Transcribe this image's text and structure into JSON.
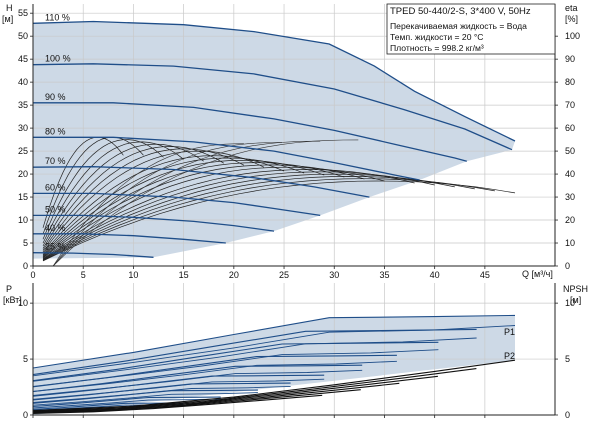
{
  "chart_data": [
    {
      "type": "line",
      "panel": "head",
      "info_box": [
        "TPED 50-440/2-S, 3*400 V, 50Hz",
        "Перекачиваемая жидкость = Вода",
        "Темп. жидкости = 20 °C",
        "Плотность = 998.2 кг/м³"
      ],
      "ylabel": "H",
      "yunit": "[м]",
      "y2label": "eta",
      "y2unit": "[%]",
      "xlabel": "Q [м³/ч]",
      "xlim": [
        0,
        50
      ],
      "ylim": [
        0,
        57
      ],
      "y2lim": [
        0,
        114
      ],
      "xticks": [
        0,
        5,
        10,
        15,
        20,
        25,
        30,
        35,
        40,
        45
      ],
      "yticks": [
        0,
        5,
        10,
        15,
        20,
        25,
        30,
        35,
        40,
        45,
        50,
        55
      ],
      "y2ticks": [
        0,
        10,
        20,
        30,
        40,
        50,
        60,
        70,
        80,
        90,
        100
      ],
      "grid": true,
      "operating_area_color": "#cdd9e6",
      "curve_color": "#1f4e89",
      "speed_curves": [
        {
          "label": "110 %",
          "points": [
            [
              0,
              52.8
            ],
            [
              6,
              53.2
            ],
            [
              15,
              52.5
            ],
            [
              22,
              51.0
            ],
            [
              29.5,
              48.3
            ],
            [
              34,
              43.5
            ],
            [
              38,
              38.0
            ],
            [
              43,
              32.5
            ],
            [
              48,
              27.2
            ]
          ]
        },
        {
          "label": "100 %",
          "points": [
            [
              0,
              43.8
            ],
            [
              6,
              44.0
            ],
            [
              14,
              43.5
            ],
            [
              22,
              41.8
            ],
            [
              30,
              38.5
            ],
            [
              37,
              34.0
            ],
            [
              43,
              29.8
            ],
            [
              47.7,
              25.3
            ]
          ]
        },
        {
          "label": "90 %",
          "points": [
            [
              0,
              35.5
            ],
            [
              8,
              35.5
            ],
            [
              16,
              34.5
            ],
            [
              24,
              32.0
            ],
            [
              30,
              29.5
            ],
            [
              36,
              26.5
            ],
            [
              42,
              23.5
            ],
            [
              43.2,
              22.8
            ]
          ]
        },
        {
          "label": "80 %",
          "points": [
            [
              0,
              28.0
            ],
            [
              8,
              28.0
            ],
            [
              16,
              27.0
            ],
            [
              24,
              25.0
            ],
            [
              30,
              22.5
            ],
            [
              36,
              19.8
            ],
            [
              38.5,
              18.7
            ]
          ]
        },
        {
          "label": "70 %",
          "points": [
            [
              0,
              21.5
            ],
            [
              6,
              21.6
            ],
            [
              14,
              21.0
            ],
            [
              22,
              19.2
            ],
            [
              28,
              17.2
            ],
            [
              33.5,
              15.0
            ]
          ]
        },
        {
          "label": "60 %",
          "points": [
            [
              0,
              15.8
            ],
            [
              6,
              15.8
            ],
            [
              14,
              15.0
            ],
            [
              20,
              13.8
            ],
            [
              24,
              12.5
            ],
            [
              28.6,
              11.0
            ]
          ]
        },
        {
          "label": "50 %",
          "points": [
            [
              0,
              11.0
            ],
            [
              5,
              11.0
            ],
            [
              10,
              10.6
            ],
            [
              16,
              9.7
            ],
            [
              20,
              8.8
            ],
            [
              24,
              7.6
            ]
          ]
        },
        {
          "label": "40 %",
          "points": [
            [
              0,
              7.0
            ],
            [
              5,
              7.0
            ],
            [
              10,
              6.6
            ],
            [
              15,
              5.8
            ],
            [
              19.2,
              5.0
            ]
          ]
        },
        {
          "label": "25 %",
          "points": [
            [
              0,
              2.9
            ],
            [
              4,
              2.8
            ],
            [
              8,
              2.5
            ],
            [
              12,
              1.9
            ]
          ]
        }
      ],
      "area_lower": [
        [
          0,
          1.6
        ],
        [
          12,
          1.9
        ],
        [
          19.2,
          5.0
        ],
        [
          24,
          7.6
        ],
        [
          28.6,
          11.0
        ],
        [
          33.5,
          15.0
        ],
        [
          38.5,
          18.7
        ],
        [
          43.2,
          22.8
        ],
        [
          47.7,
          25.3
        ],
        [
          48,
          27.2
        ]
      ],
      "efficiency_curves_max_pct": [
        56,
        56,
        55,
        54,
        53,
        52,
        51,
        50,
        48,
        47,
        46,
        45,
        44,
        43,
        42,
        41,
        40,
        39,
        38,
        37
      ],
      "efficiency_curve_q_end": [
        9,
        11,
        13,
        15,
        17,
        19,
        21,
        23,
        25,
        27,
        29,
        31,
        33,
        35,
        38,
        40,
        42,
        44,
        46,
        48
      ]
    },
    {
      "type": "line",
      "panel": "power",
      "ylabel": "P",
      "yunit": "[кВт]",
      "y2label": "NPSH",
      "y2unit": "[м]",
      "xlim": [
        0,
        50
      ],
      "ylim": [
        0,
        11.8
      ],
      "y2lim": [
        0,
        11.8
      ],
      "yticks": [
        0,
        5,
        10
      ],
      "y2ticks": [
        0,
        5,
        10
      ],
      "xticks": [
        0,
        5,
        10,
        15,
        20,
        25,
        30,
        35,
        40,
        45
      ],
      "grid": true,
      "series_labels": [
        "P1",
        "P2"
      ],
      "p1_curve": [
        [
          0,
          4.2
        ],
        [
          10,
          5.6
        ],
        [
          20,
          7.2
        ],
        [
          29.5,
          8.7
        ],
        [
          40,
          8.8
        ],
        [
          48,
          8.9
        ]
      ],
      "p2_curve": [
        [
          0,
          3.5
        ],
        [
          10,
          4.7
        ],
        [
          20,
          6.0
        ],
        [
          29.5,
          7.4
        ],
        [
          40,
          7.6
        ],
        [
          48,
          8.0
        ]
      ],
      "npsh_curve": [
        [
          0,
          0.4
        ],
        [
          10,
          0.8
        ],
        [
          20,
          1.6
        ],
        [
          30,
          2.7
        ],
        [
          40,
          3.9
        ],
        [
          48,
          4.9
        ]
      ],
      "area_lower": [
        [
          0,
          0.0
        ],
        [
          48,
          4.9
        ]
      ]
    }
  ]
}
